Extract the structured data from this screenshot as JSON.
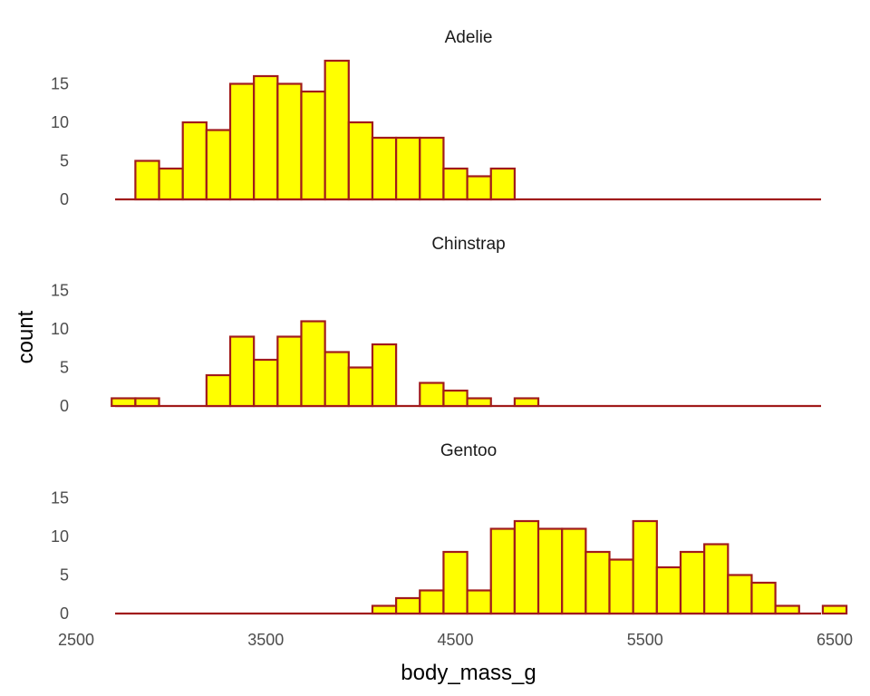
{
  "chart_data": {
    "type": "histogram",
    "xlabel": "body_mass_g",
    "ylabel": "count",
    "x_ticks": [
      2500,
      3500,
      4500,
      5500,
      6500
    ],
    "y_ticks": [
      0,
      5,
      10,
      15
    ],
    "xlim": [
      2500,
      6500
    ],
    "ylim": [
      0,
      18
    ],
    "bin_width": 125,
    "bin_start": 2687.5,
    "grid": false,
    "colors": {
      "fill": "#ffff00",
      "stroke": "#a11b1b",
      "baseline": "#a11b1b"
    },
    "panels": [
      {
        "name": "Adelie",
        "counts": [
          0,
          5,
          4,
          10,
          9,
          15,
          16,
          15,
          14,
          18,
          10,
          8,
          8,
          8,
          4,
          3,
          4,
          0,
          0,
          0,
          0,
          0,
          0,
          0,
          0,
          0,
          0,
          0,
          0,
          0,
          0
        ]
      },
      {
        "name": "Chinstrap",
        "counts": [
          1,
          1,
          0,
          0,
          4,
          9,
          6,
          9,
          11,
          7,
          5,
          8,
          0,
          3,
          2,
          1,
          0,
          1,
          0,
          0,
          0,
          0,
          0,
          0,
          0,
          0,
          0,
          0,
          0,
          0,
          0
        ]
      },
      {
        "name": "Gentoo",
        "counts": [
          0,
          0,
          0,
          0,
          0,
          0,
          0,
          0,
          0,
          0,
          0,
          1,
          2,
          3,
          8,
          3,
          11,
          12,
          11,
          11,
          8,
          7,
          12,
          6,
          8,
          9,
          5,
          4,
          1,
          0,
          1
        ]
      }
    ]
  }
}
